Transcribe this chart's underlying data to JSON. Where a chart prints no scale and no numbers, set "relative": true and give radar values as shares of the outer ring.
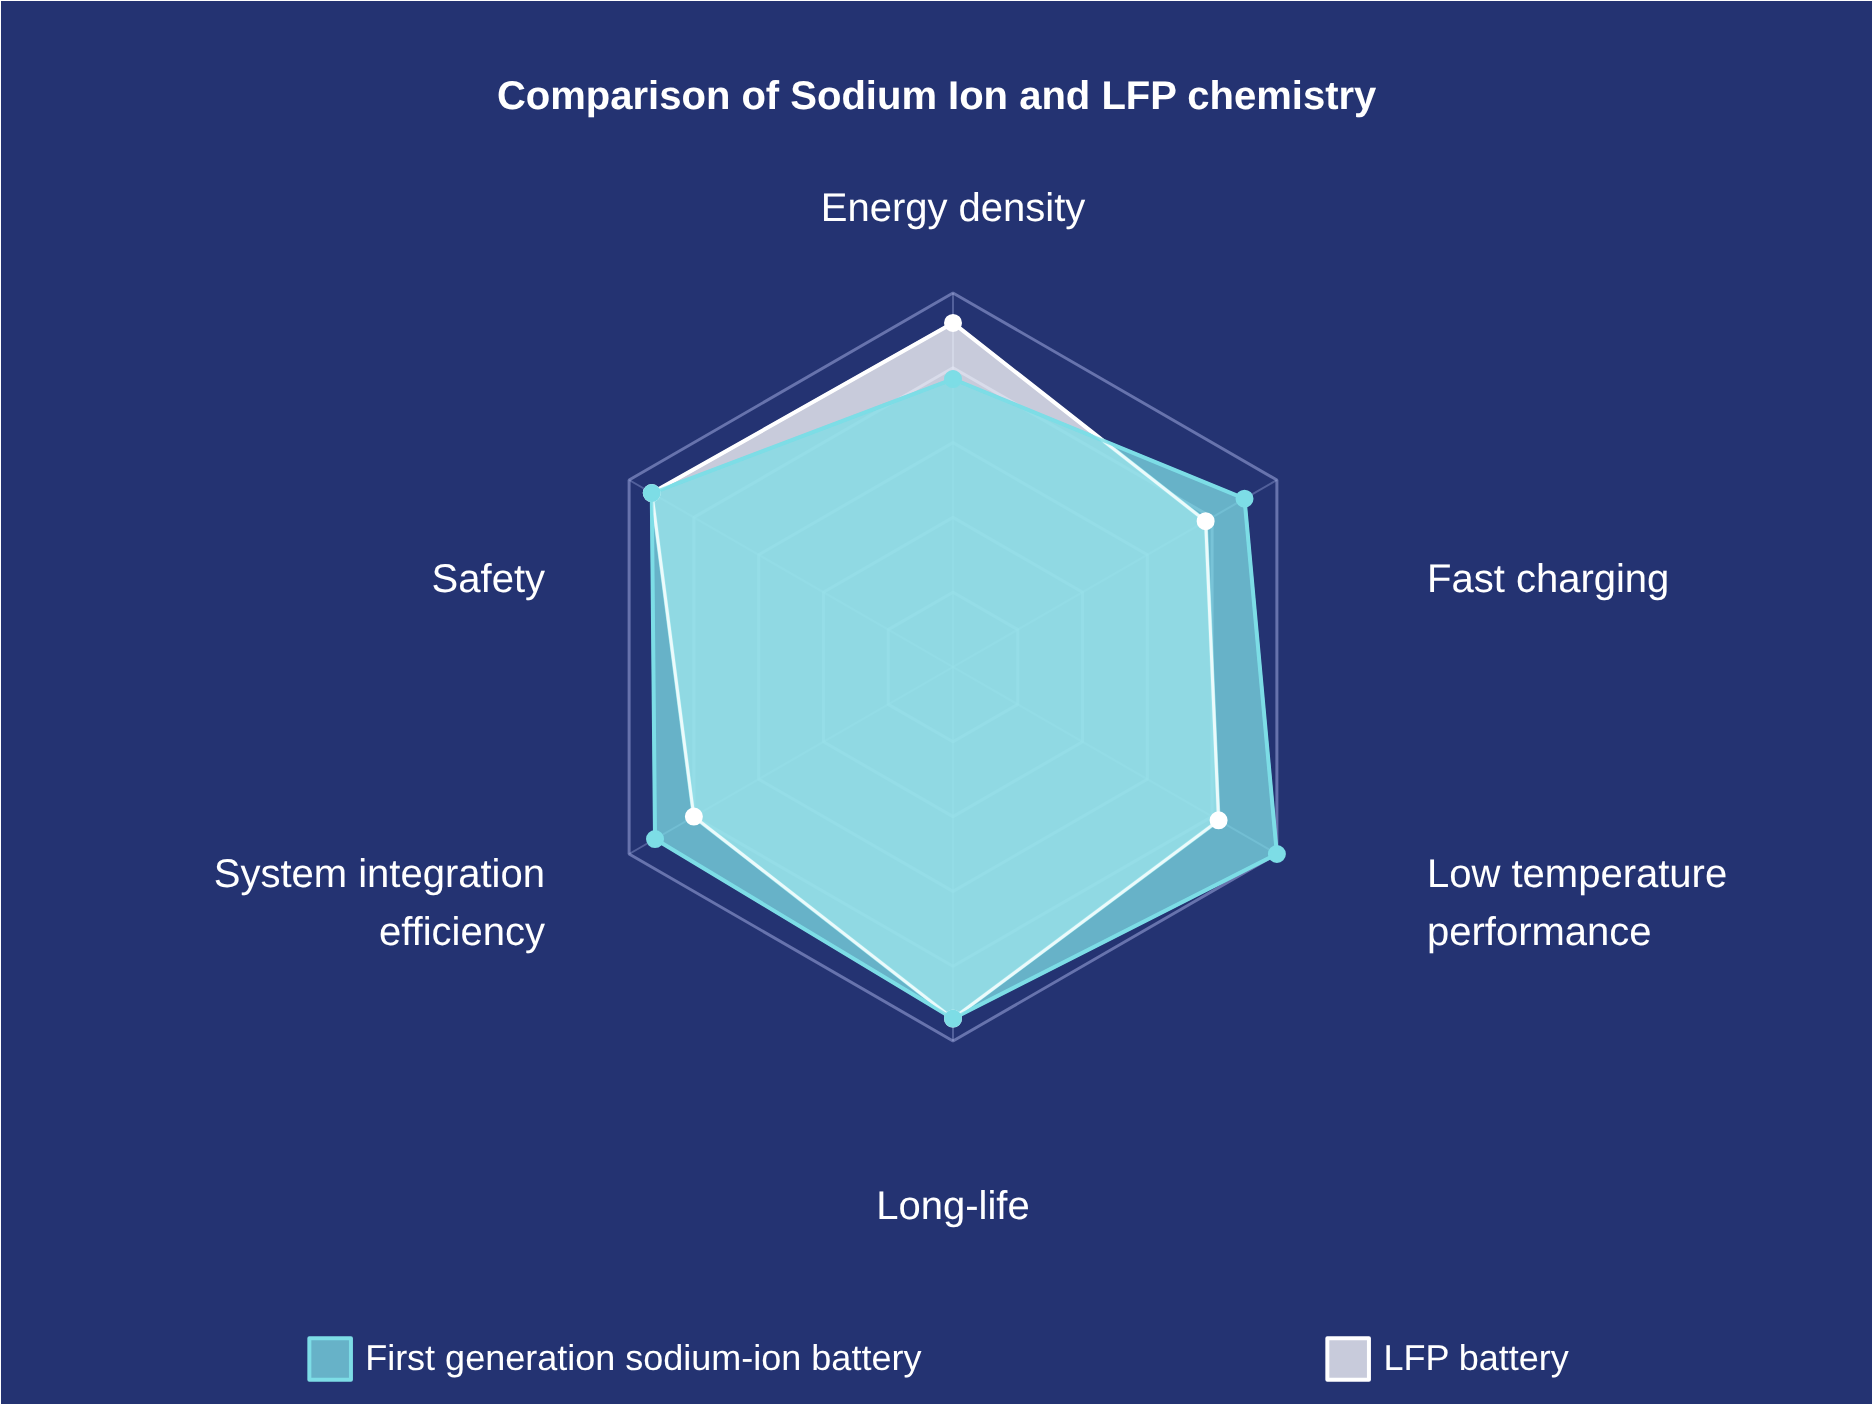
{
  "chart_data": {
    "type": "radar",
    "title": "Comparison of Sodium Ion and LFP chemistry",
    "categories": [
      "Energy density",
      "Fast charging",
      "Low temperature performance",
      "Long-life",
      "System integration efficiency",
      "Safety"
    ],
    "relative": true,
    "marker": "circle",
    "legend": "bottom",
    "series": [
      {
        "name": "First generation sodium-ion battery",
        "color": "#7ddde6",
        "values": [
          0.77,
          0.9,
          1.0,
          0.94,
          0.92,
          0.93
        ]
      },
      {
        "name": "LFP battery",
        "color": "#ffffff",
        "values": [
          0.92,
          0.78,
          0.82,
          0.94,
          0.8,
          0.93
        ]
      }
    ]
  }
}
